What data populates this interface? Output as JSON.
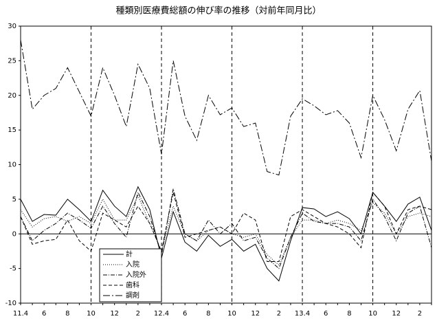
{
  "chart_data": {
    "type": "line",
    "title": "種類別医療費総額の伸び率の推移（対前年同月比）",
    "categories": [
      "11.4",
      null,
      "6",
      null,
      "8",
      null,
      "10",
      null,
      "12",
      null,
      "2",
      null,
      "12.4",
      null,
      "6",
      null,
      "8",
      null,
      "10",
      null,
      "12",
      null,
      "2",
      null,
      "13.4",
      null,
      "6",
      null,
      "8",
      null,
      "10",
      null,
      "12",
      null,
      "2",
      null
    ],
    "series": [
      {
        "name": "計",
        "color": "#000000",
        "style": "solid",
        "values": [
          5,
          1.8,
          2.8,
          2.7,
          5,
          3.5,
          1.8,
          6.3,
          4,
          2.5,
          6.8,
          3.5,
          -3.5,
          3.2,
          -1.2,
          -2.5,
          -0.2,
          -1.8,
          -0.8,
          -2.5,
          -1.5,
          -5,
          -6.8,
          -1,
          3.8,
          3.6,
          2.5,
          3.2,
          2.2,
          0,
          6,
          4,
          1.8,
          4.3,
          5.3,
          0.5
        ]
      },
      {
        "name": "入院",
        "color": "#000000",
        "style": "dotted",
        "values": [
          3.5,
          1,
          2.2,
          2.5,
          1.8,
          2.5,
          1.5,
          5,
          2,
          2,
          5.5,
          1.5,
          -2.5,
          4,
          0,
          -1,
          0.5,
          1,
          0,
          -0.5,
          0,
          -3,
          -4.5,
          -0.5,
          2,
          2,
          1.5,
          2,
          1.5,
          0.5,
          4.5,
          3,
          0,
          2.5,
          3,
          2.5
        ]
      },
      {
        "name": "入院外",
        "color": "#000000",
        "style": "dashdot",
        "values": [
          2.5,
          -1,
          0.5,
          1.5,
          3,
          2,
          0.8,
          4,
          1.5,
          -0.5,
          6,
          2.5,
          -3,
          6.5,
          0,
          -1,
          2,
          0,
          1.5,
          -1,
          -0.5,
          -3.5,
          -5,
          -0.5,
          3,
          1.8,
          1.5,
          1.5,
          1,
          -1,
          5,
          2.5,
          -1,
          3,
          4,
          -2
        ]
      },
      {
        "name": "歯科",
        "color": "#000000",
        "style": "dashed",
        "values": [
          2.5,
          -1.5,
          -1,
          -0.8,
          2,
          -1,
          -2.5,
          3,
          2,
          1,
          4,
          1.5,
          -2.5,
          6,
          -0.5,
          0,
          0.5,
          1,
          0,
          3,
          2,
          -4,
          -4,
          2.5,
          3.5,
          2.5,
          1.5,
          1,
          0,
          -2,
          6,
          4,
          0,
          3.5,
          4,
          3.5
        ]
      },
      {
        "name": "調剤",
        "color": "#000000",
        "style": "dashdotlong",
        "values": [
          28,
          18,
          20,
          21,
          24,
          20.5,
          17,
          24,
          20,
          15.5,
          24.5,
          21,
          11.5,
          25,
          17,
          13.5,
          20,
          17.2,
          18.2,
          15.5,
          16,
          9,
          8.5,
          17,
          19.5,
          18.5,
          17.2,
          17.8,
          16,
          11,
          20,
          16.5,
          12,
          18,
          20.7,
          10.5
        ]
      }
    ],
    "ylim": [
      -10,
      30
    ],
    "yticks": [
      -10,
      -5,
      0,
      5,
      10,
      15,
      20,
      25,
      30
    ],
    "grid": false
  }
}
